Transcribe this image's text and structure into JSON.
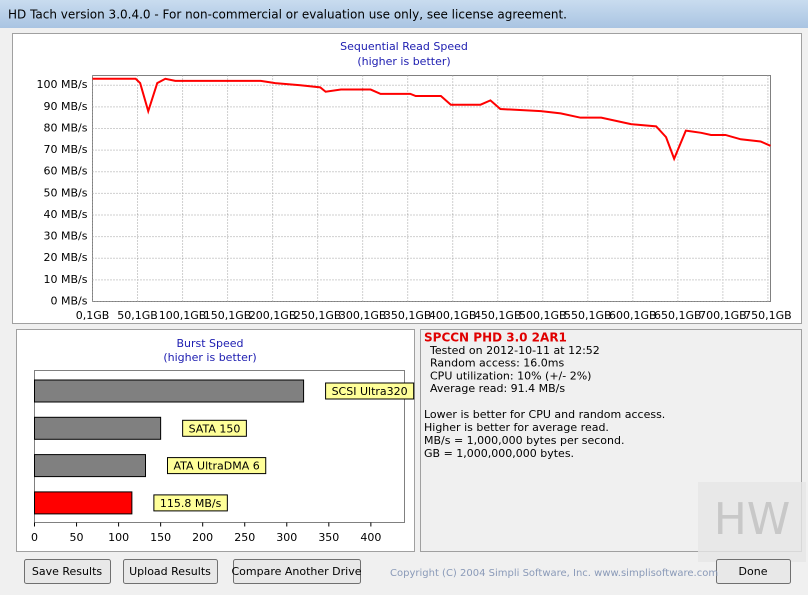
{
  "window": {
    "title": "HD Tach version 3.0.4.0  - For non-commercial or evaluation use only, see license agreement."
  },
  "chart_data": [
    {
      "type": "line",
      "title": "Sequential Read Speed",
      "subtitle": "(higher is better)",
      "color": "#ff0000",
      "grid": true,
      "x": [
        0.1,
        48,
        53,
        62,
        72,
        81,
        92,
        120,
        153,
        187,
        203,
        231,
        253,
        259,
        276,
        309,
        320,
        353,
        359,
        387,
        398,
        431,
        442,
        453,
        498,
        520,
        542,
        565,
        598,
        626,
        637,
        646,
        659,
        676,
        687,
        703,
        720,
        742,
        753
      ],
      "values": [
        103,
        103,
        101,
        88,
        101,
        103,
        102,
        102,
        102,
        102,
        101,
        100,
        99,
        97,
        98,
        98,
        96,
        96,
        95,
        95,
        91,
        91,
        93,
        89,
        88,
        87,
        85,
        85,
        82,
        81,
        76,
        66,
        79,
        78,
        77,
        77,
        75,
        74,
        72
      ],
      "xlim": [
        0.1,
        753
      ],
      "ylim": [
        0,
        104.5
      ],
      "xticks": [
        {
          "value": 0.1,
          "label": "0,1GB"
        },
        {
          "value": 50.1,
          "label": "50,1GB"
        },
        {
          "value": 100.1,
          "label": "100,1GB"
        },
        {
          "value": 150.1,
          "label": "150,1GB"
        },
        {
          "value": 200.1,
          "label": "200,1GB"
        },
        {
          "value": 250.1,
          "label": "250,1GB"
        },
        {
          "value": 300.1,
          "label": "300,1GB"
        },
        {
          "value": 350.1,
          "label": "350,1GB"
        },
        {
          "value": 400.1,
          "label": "400,1GB"
        },
        {
          "value": 450.1,
          "label": "450,1GB"
        },
        {
          "value": 500.1,
          "label": "500,1GB"
        },
        {
          "value": 550.1,
          "label": "550,1GB"
        },
        {
          "value": 600.1,
          "label": "600,1GB"
        },
        {
          "value": 650.1,
          "label": "650,1GB"
        },
        {
          "value": 700.1,
          "label": "700,1GB"
        },
        {
          "value": 750.1,
          "label": "750,1GB"
        }
      ],
      "yticks": [
        {
          "value": 0,
          "label": "0 MB/s"
        },
        {
          "value": 10,
          "label": "10 MB/s"
        },
        {
          "value": 20,
          "label": "20 MB/s"
        },
        {
          "value": 30,
          "label": "30 MB/s"
        },
        {
          "value": 40,
          "label": "40 MB/s"
        },
        {
          "value": 50,
          "label": "50 MB/s"
        },
        {
          "value": 60,
          "label": "60 MB/s"
        },
        {
          "value": 70,
          "label": "70 MB/s"
        },
        {
          "value": 80,
          "label": "80 MB/s"
        },
        {
          "value": 90,
          "label": "90 MB/s"
        },
        {
          "value": 100,
          "label": "100 MB/s"
        }
      ]
    },
    {
      "type": "hbar",
      "title": "Burst Speed",
      "subtitle": "(higher is better)",
      "categories": [
        "SCSI Ultra320",
        "SATA 150",
        "ATA UltraDMA 6",
        null
      ],
      "values": [
        320,
        150,
        132,
        115.8
      ],
      "value_labels": [
        null,
        null,
        null,
        "115.8 MB/s"
      ],
      "colors": [
        "#808080",
        "#808080",
        "#808080",
        "#ff0000"
      ],
      "xlim": [
        0,
        440
      ],
      "xticks": [
        0,
        50,
        100,
        150,
        200,
        250,
        300,
        350,
        400
      ]
    }
  ],
  "info": {
    "drive": "SPCCN PHD 3.0 2AR1",
    "results": [
      "Tested on 2012-10-11 at 12:52",
      "Random access: 16.0ms",
      "CPU utilization: 10% (+/- 2%)",
      "Average read: 91.4 MB/s"
    ],
    "notes": [
      "Lower is better for CPU and random access.",
      "Higher is better for average read.",
      "MB/s = 1,000,000 bytes per second.",
      "GB = 1,000,000,000 bytes."
    ]
  },
  "buttons": [
    "Save Results",
    "Upload Results",
    "Compare Another Drive",
    "Done"
  ],
  "copyright": "Copyright (C) 2004 Simpli Software, Inc. www.simplisoftware.com"
}
